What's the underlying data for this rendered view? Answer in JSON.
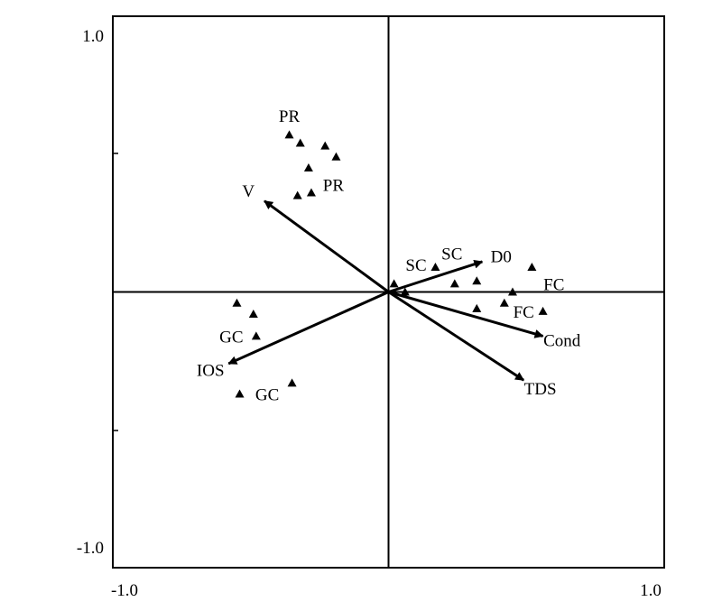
{
  "chart_data": {
    "type": "scatter",
    "subtype": "ordination-biplot",
    "xlim": [
      -1.0,
      1.0
    ],
    "ylim": [
      -1.0,
      1.0
    ],
    "tick_labels": {
      "x_left": "-1.0",
      "x_right": "1.0",
      "y_top": "1.0",
      "y_bottom": "-1.0"
    },
    "reference_lines": {
      "x": 0,
      "y": 0
    },
    "grid": false,
    "legend": "none",
    "marker": "triangle",
    "color": "#000000",
    "vectors": [
      {
        "name": "V",
        "x": -0.45,
        "y": 0.33
      },
      {
        "name": "IOS",
        "x": -0.58,
        "y": -0.26
      },
      {
        "name": "D0",
        "x": 0.34,
        "y": 0.11
      },
      {
        "name": "Cond",
        "x": 0.56,
        "y": -0.16
      },
      {
        "name": "TDS",
        "x": 0.49,
        "y": -0.32
      }
    ],
    "points": [
      {
        "x": -0.36,
        "y": 0.57
      },
      {
        "x": -0.32,
        "y": 0.54
      },
      {
        "x": -0.23,
        "y": 0.53
      },
      {
        "x": -0.19,
        "y": 0.49
      },
      {
        "x": -0.29,
        "y": 0.45
      },
      {
        "x": -0.33,
        "y": 0.35
      },
      {
        "x": -0.28,
        "y": 0.36
      },
      {
        "x": -0.55,
        "y": -0.04
      },
      {
        "x": -0.49,
        "y": -0.08
      },
      {
        "x": -0.48,
        "y": -0.16
      },
      {
        "x": -0.54,
        "y": -0.37
      },
      {
        "x": -0.35,
        "y": -0.33
      },
      {
        "x": 0.02,
        "y": 0.03
      },
      {
        "x": 0.06,
        "y": 0.0
      },
      {
        "x": 0.17,
        "y": 0.09
      },
      {
        "x": 0.24,
        "y": 0.03
      },
      {
        "x": 0.32,
        "y": 0.04
      },
      {
        "x": 0.52,
        "y": 0.09
      },
      {
        "x": 0.45,
        "y": 0.0
      },
      {
        "x": 0.42,
        "y": -0.04
      },
      {
        "x": 0.32,
        "y": -0.06
      },
      {
        "x": 0.56,
        "y": -0.07
      }
    ],
    "annotations": [
      {
        "text": "PR",
        "x": -0.36,
        "y": 0.64
      },
      {
        "text": "PR",
        "x": -0.2,
        "y": 0.39
      },
      {
        "text": "SC",
        "x": 0.1,
        "y": 0.1
      },
      {
        "text": "SC",
        "x": 0.23,
        "y": 0.14
      },
      {
        "text": "FC",
        "x": 0.6,
        "y": 0.03
      },
      {
        "text": "FC",
        "x": 0.49,
        "y": -0.07
      },
      {
        "text": "GC",
        "x": -0.57,
        "y": -0.16
      },
      {
        "text": "GC",
        "x": -0.44,
        "y": -0.37
      }
    ]
  }
}
